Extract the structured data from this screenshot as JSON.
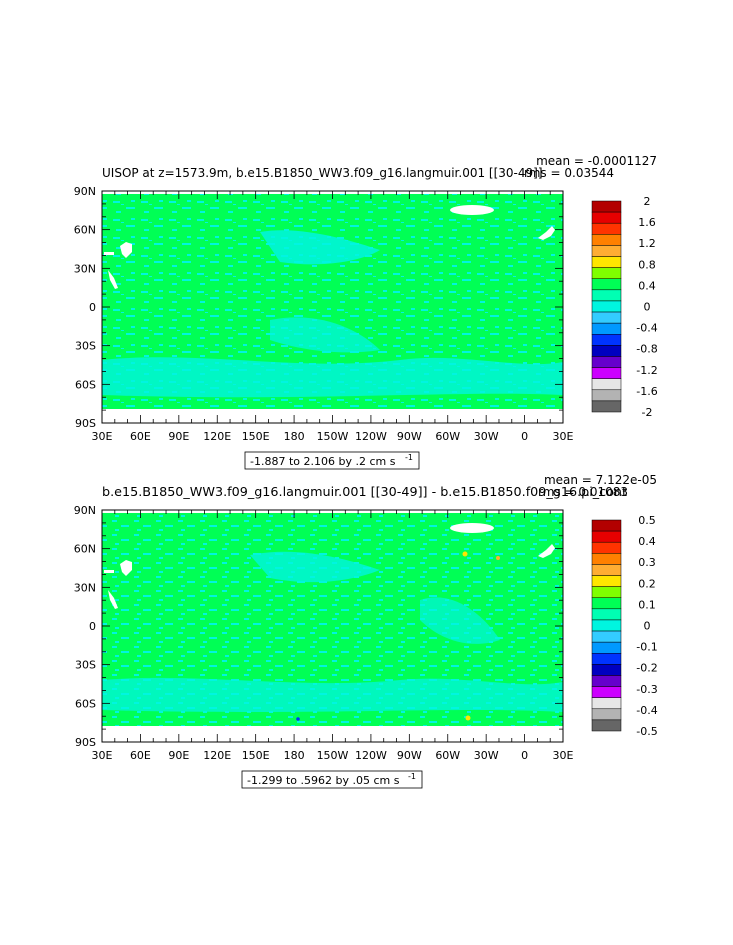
{
  "colors": {
    "ocean_zero": "#00ff55",
    "ocean_neg": "#00f5e0",
    "land": "#ffffff"
  },
  "panels": [
    {
      "title_left": "UISOP at z=1573.9m, b.e15.B1850_WW3.f09_g16.langmuir.001 [[30-49]]",
      "stat_mean": "mean = -0.0001127",
      "stat_rms": "rms = 0.03544",
      "range_label": "-1.887 to 2.106 by .2 cm s",
      "range_exp": "-1",
      "colorbar": {
        "labels": [
          "2",
          "1.6",
          "1.2",
          "0.8",
          "0.4",
          "0",
          "-0.4",
          "-0.8",
          "-1.2",
          "-1.6",
          "-2"
        ],
        "colors": [
          "#b30000",
          "#e60000",
          "#ff3300",
          "#ff8000",
          "#ffad33",
          "#ffe600",
          "#80ff00",
          "#00ff55",
          "#00ffb3",
          "#00f5e0",
          "#33ccff",
          "#0099ff",
          "#0033ff",
          "#0000c0",
          "#6600cc",
          "#cc00ff",
          "#e6e6e6",
          "#b3b3b3",
          "#666666"
        ]
      }
    },
    {
      "title_left": "b.e15.B1850_WW3.f09_g16.langmuir.001 [[30-49]] - b.e15.B1850.f09_g16.pi_cont",
      "stat_mean": "mean = 7.122e-05",
      "stat_rms": "rms = 0.01083",
      "range_label": "-1.299 to .5962 by .05 cm s",
      "range_exp": "-1",
      "colorbar": {
        "labels": [
          "0.5",
          "0.4",
          "0.3",
          "0.2",
          "0.1",
          "0",
          "-0.1",
          "-0.2",
          "-0.3",
          "-0.4",
          "-0.5"
        ],
        "colors": [
          "#b30000",
          "#e60000",
          "#ff3300",
          "#ff8000",
          "#ffad33",
          "#ffe600",
          "#80ff00",
          "#00ff55",
          "#00ffb3",
          "#00f5e0",
          "#33ccff",
          "#0099ff",
          "#0033ff",
          "#0000c0",
          "#6600cc",
          "#cc00ff",
          "#e6e6e6",
          "#b3b3b3",
          "#666666"
        ]
      }
    }
  ],
  "axes": {
    "lon_labels": [
      "30E",
      "60E",
      "90E",
      "120E",
      "150E",
      "180",
      "150W",
      "120W",
      "90W",
      "60W",
      "30W",
      "0",
      "30E"
    ],
    "lat_labels": [
      "90N",
      "60N",
      "30N",
      "0",
      "30S",
      "60S",
      "90S"
    ]
  }
}
